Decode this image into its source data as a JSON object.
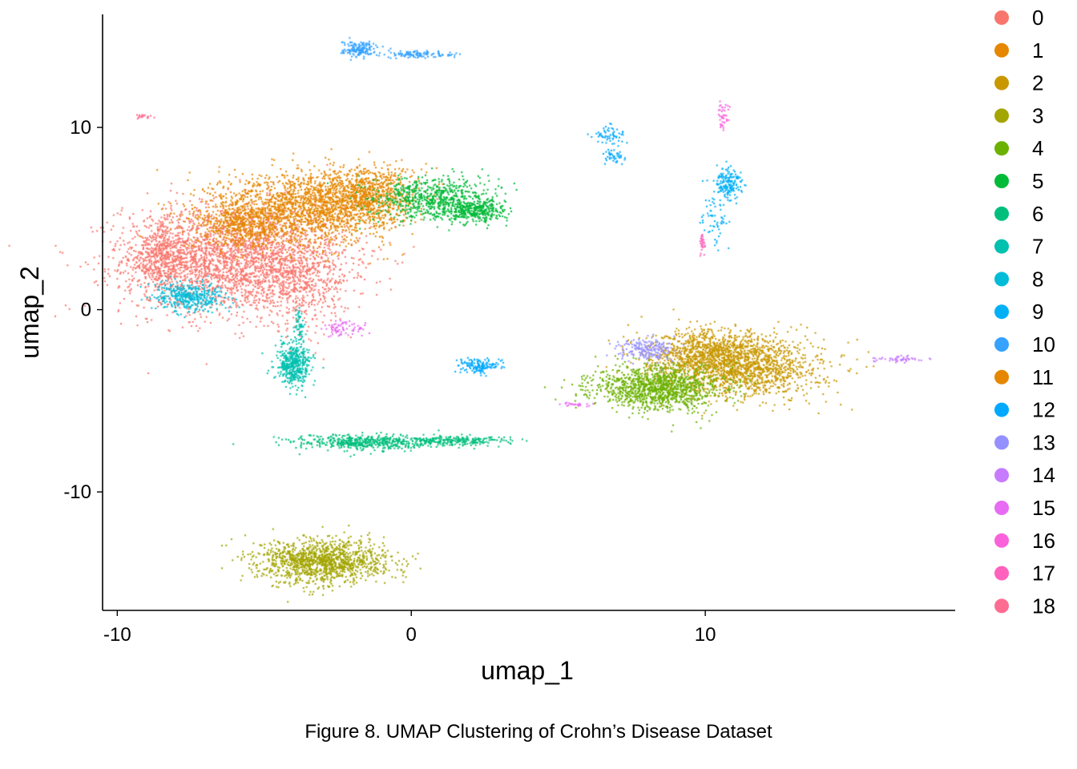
{
  "caption": "Figure 8. UMAP Clustering of Crohn’s Disease Dataset",
  "chart_data": {
    "type": "scatter",
    "title": "",
    "xlabel": "umap_1",
    "ylabel": "umap_2",
    "xlim": [
      -10.5,
      18.5
    ],
    "ylim": [
      -16.5,
      16.2
    ],
    "xticks": [
      -10,
      0,
      10
    ],
    "xtick_labels": [
      "-10",
      "0",
      "10"
    ],
    "yticks": [
      10,
      0,
      -10
    ],
    "ytick_labels": [
      "10",
      "0",
      "-10"
    ],
    "grid": false,
    "legend_position": "right",
    "series": [
      {
        "name": "0",
        "color": "#F8766D",
        "clusters": [
          {
            "cx": -6.0,
            "cy": 2.8,
            "sx": 1.9,
            "sy": 1.5,
            "n": 2600
          },
          {
            "cx": -8.4,
            "cy": 2.9,
            "sx": 0.6,
            "sy": 0.9,
            "n": 500
          },
          {
            "cx": -3.8,
            "cy": 1.5,
            "sx": 0.8,
            "sy": 1.2,
            "n": 400
          }
        ]
      },
      {
        "name": "1",
        "color": "#E58700",
        "clusters": [
          {
            "cx": -3.8,
            "cy": 5.5,
            "sx": 1.5,
            "sy": 1.0,
            "n": 1600
          },
          {
            "cx": -1.6,
            "cy": 6.3,
            "sx": 0.9,
            "sy": 0.8,
            "n": 900
          },
          {
            "cx": -5.8,
            "cy": 4.6,
            "sx": 0.8,
            "sy": 0.6,
            "n": 400
          }
        ]
      },
      {
        "name": "2",
        "color": "#C99800",
        "clusters": [
          {
            "cx": 11.2,
            "cy": -3.2,
            "sx": 1.4,
            "sy": 0.8,
            "n": 1500
          },
          {
            "cx": 10.2,
            "cy": -2.3,
            "sx": 1.1,
            "sy": 0.6,
            "n": 700
          }
        ]
      },
      {
        "name": "3",
        "color": "#A3A500",
        "clusters": [
          {
            "cx": -3.0,
            "cy": -13.8,
            "sx": 1.1,
            "sy": 0.6,
            "n": 1300
          }
        ]
      },
      {
        "name": "4",
        "color": "#6BB100",
        "clusters": [
          {
            "cx": 8.4,
            "cy": -4.3,
            "sx": 1.1,
            "sy": 0.6,
            "n": 1200
          }
        ]
      },
      {
        "name": "5",
        "color": "#00BA38",
        "clusters": [
          {
            "cx": 0.8,
            "cy": 6.1,
            "sx": 1.0,
            "sy": 0.6,
            "n": 700
          },
          {
            "cx": 2.2,
            "cy": 5.4,
            "sx": 0.5,
            "sy": 0.3,
            "n": 300
          }
        ]
      },
      {
        "name": "6",
        "color": "#00BF7D",
        "clusters": [
          {
            "cx": -1.6,
            "cy": -7.3,
            "sx": 1.2,
            "sy": 0.22,
            "n": 500
          },
          {
            "cx": 1.5,
            "cy": -7.2,
            "sx": 1.0,
            "sy": 0.12,
            "n": 250
          }
        ]
      },
      {
        "name": "7",
        "color": "#00C0AF",
        "clusters": [
          {
            "cx": -4.0,
            "cy": -3.0,
            "sx": 0.3,
            "sy": 0.6,
            "n": 450
          },
          {
            "cx": -3.8,
            "cy": -1.0,
            "sx": 0.08,
            "sy": 0.5,
            "n": 60
          }
        ]
      },
      {
        "name": "8",
        "color": "#00BCD8",
        "clusters": [
          {
            "cx": -7.5,
            "cy": 0.7,
            "sx": 0.6,
            "sy": 0.4,
            "n": 400
          }
        ]
      },
      {
        "name": "9",
        "color": "#00B0F6",
        "clusters": [
          {
            "cx": 10.8,
            "cy": 6.9,
            "sx": 0.25,
            "sy": 0.4,
            "n": 180
          },
          {
            "cx": 10.3,
            "cy": 5.0,
            "sx": 0.2,
            "sy": 0.6,
            "n": 60
          }
        ]
      },
      {
        "name": "10",
        "color": "#35A2FF",
        "clusters": [
          {
            "cx": -1.8,
            "cy": 14.3,
            "sx": 0.3,
            "sy": 0.2,
            "n": 150
          },
          {
            "cx": 0.2,
            "cy": 14.0,
            "sx": 0.7,
            "sy": 0.1,
            "n": 120
          }
        ]
      },
      {
        "name": "11",
        "color": "#E58700",
        "clusters": []
      },
      {
        "name": "12",
        "color": "#00A9FF",
        "clusters": [
          {
            "cx": 2.3,
            "cy": -3.1,
            "sx": 0.3,
            "sy": 0.2,
            "n": 150
          },
          {
            "cx": 6.7,
            "cy": 9.6,
            "sx": 0.3,
            "sy": 0.3,
            "n": 60
          },
          {
            "cx": 6.9,
            "cy": 8.4,
            "sx": 0.2,
            "sy": 0.2,
            "n": 40
          }
        ]
      },
      {
        "name": "13",
        "color": "#9590FF",
        "clusters": [
          {
            "cx": 8.0,
            "cy": -2.2,
            "sx": 0.5,
            "sy": 0.3,
            "n": 200
          }
        ]
      },
      {
        "name": "14",
        "color": "#C77CFF",
        "clusters": [
          {
            "cx": 16.6,
            "cy": -2.7,
            "sx": 0.4,
            "sy": 0.08,
            "n": 50
          }
        ]
      },
      {
        "name": "15",
        "color": "#E76BF3",
        "clusters": [
          {
            "cx": -2.3,
            "cy": -1.0,
            "sx": 0.4,
            "sy": 0.25,
            "n": 70
          },
          {
            "cx": 5.6,
            "cy": -5.2,
            "sx": 0.3,
            "sy": 0.05,
            "n": 25
          }
        ]
      },
      {
        "name": "16",
        "color": "#FA62DB",
        "clusters": [
          {
            "cx": 10.6,
            "cy": 10.7,
            "sx": 0.1,
            "sy": 0.4,
            "n": 40
          }
        ]
      },
      {
        "name": "17",
        "color": "#FF62BC",
        "clusters": [
          {
            "cx": 9.9,
            "cy": 3.6,
            "sx": 0.06,
            "sy": 0.3,
            "n": 30
          }
        ]
      },
      {
        "name": "18",
        "color": "#FF6C91",
        "clusters": [
          {
            "cx": -9.1,
            "cy": 10.6,
            "sx": 0.15,
            "sy": 0.06,
            "n": 20
          }
        ]
      }
    ]
  }
}
